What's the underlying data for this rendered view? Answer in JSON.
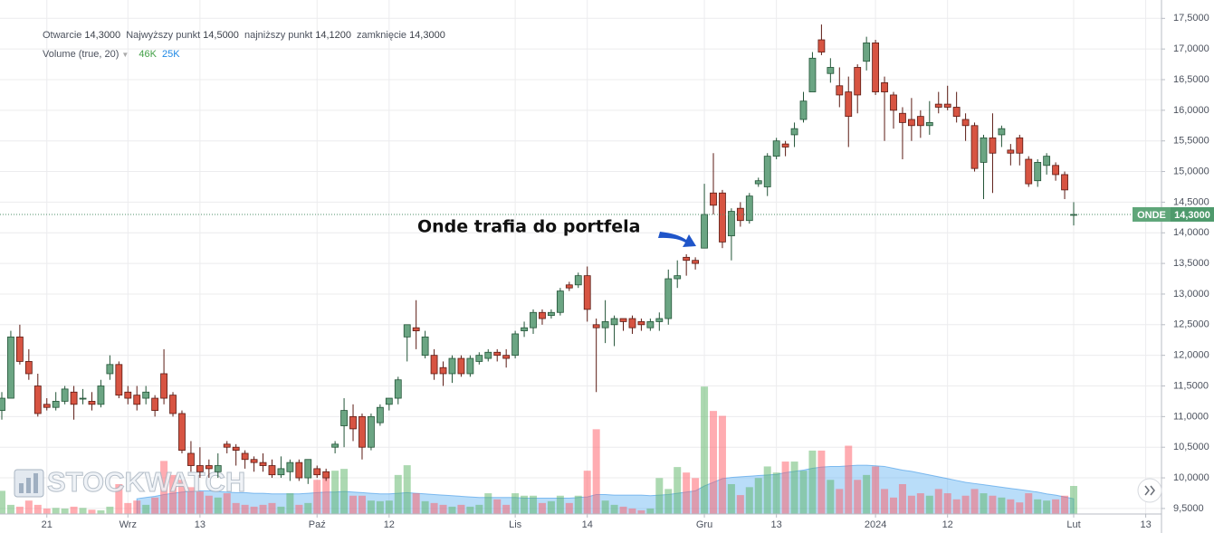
{
  "chart_data": {
    "type": "candlestick",
    "ohlc_legend": [
      "Otwarcie",
      "14,3000",
      "Najwyższy punkt",
      "14,5000",
      "najniższy punkt",
      "14,1200",
      "zamknięcie",
      "14,3000"
    ],
    "volume_legend": {
      "name": "Volume (true, 20)",
      "value": "46K",
      "ma": "25K"
    },
    "annotation": "Onde trafia do portfela",
    "watermark": "STOCKWATCH",
    "last_price": {
      "name": "ONDE",
      "value": 14.3,
      "label": "14,3000"
    },
    "up_color": "#6ba583",
    "down_color": "#d75442",
    "volume_up_color": "rgba(90,180,100,0.5)",
    "volume_down_color": "rgba(255,90,100,0.5)",
    "volume_ma_color": "rgba(80,170,240,0.4)",
    "grid": true,
    "xlim": [
      -0.2,
      128.75
    ],
    "xticks": [
      {
        "value": 5,
        "label": "21"
      },
      {
        "value": 14,
        "label": "Wrz"
      },
      {
        "value": 22,
        "label": "13"
      },
      {
        "value": 35,
        "label": "Paź"
      },
      {
        "value": 43,
        "label": "12"
      },
      {
        "value": 57,
        "label": "Lis"
      },
      {
        "value": 65,
        "label": "14"
      },
      {
        "value": 78,
        "label": "Gru"
      },
      {
        "value": 86,
        "label": "13"
      },
      {
        "value": 97,
        "label": "2024"
      },
      {
        "value": 105,
        "label": "12"
      },
      {
        "value": 119,
        "label": "Lut"
      },
      {
        "value": 127,
        "label": "13"
      }
    ],
    "ylim": [
      9.41,
      17.8
    ],
    "yticks": [
      {
        "value": 9.5,
        "label": "9,5000"
      },
      {
        "value": 10,
        "label": "10,0000"
      },
      {
        "value": 10.5,
        "label": "10,5000"
      },
      {
        "value": 11,
        "label": "11,0000"
      },
      {
        "value": 11.5,
        "label": "11,5000"
      },
      {
        "value": 12,
        "label": "12,0000"
      },
      {
        "value": 12.5,
        "label": "12,5000"
      },
      {
        "value": 13,
        "label": "13,0000"
      },
      {
        "value": 13.5,
        "label": "13,5000"
      },
      {
        "value": 14,
        "label": "14,0000"
      },
      {
        "value": 14.5,
        "label": "14,5000"
      },
      {
        "value": 15,
        "label": "15,0000"
      },
      {
        "value": 15.5,
        "label": "15,5000"
      },
      {
        "value": 16,
        "label": "16,0000"
      },
      {
        "value": 16.5,
        "label": "16,5000"
      },
      {
        "value": 17,
        "label": "17,0000"
      },
      {
        "value": 17.5,
        "label": "17,5000"
      }
    ],
    "y2lim": [
      0,
      843
    ],
    "open": [
      11.1,
      11.3,
      12.3,
      11.9,
      11.5,
      11.2,
      11.15,
      11.25,
      11.4,
      11.3,
      11.25,
      11.2,
      11.7,
      11.85,
      11.4,
      11.35,
      11.3,
      11.3,
      11.7,
      11.35,
      11.05,
      10.4,
      10.2,
      10.2,
      10.1,
      10.55,
      10.5,
      10.4,
      10.3,
      10.25,
      10.2,
      10.05,
      10.1,
      10.25,
      10.0,
      10.15,
      10.1,
      10.5,
      10.85,
      11.0,
      11.0,
      10.5,
      10.9,
      11.2,
      11.3,
      12.3,
      12.45,
      12.0,
      12.0,
      11.8,
      11.7,
      11.95,
      11.7,
      11.9,
      11.95,
      12.05,
      12.0,
      12.0,
      12.4,
      12.45,
      12.7,
      12.65,
      12.7,
      13.15,
      13.15,
      13.3,
      12.5,
      12.45,
      12.5,
      12.6,
      12.6,
      12.55,
      12.45,
      12.55,
      12.6,
      13.25,
      13.6,
      13.55,
      13.75,
      14.65,
      14.65,
      13.95,
      14.4,
      14.2,
      14.8,
      14.75,
      15.25,
      15.45,
      15.6,
      15.85,
      16.3,
      17.15,
      16.6,
      16.4,
      16.3,
      16.7,
      16.8,
      17.1,
      16.45,
      16.25,
      15.95,
      15.85,
      15.9,
      15.75,
      16.1,
      16.1,
      16.05,
      15.85,
      15.75,
      15.15,
      15.55,
      15.6,
      15.35,
      15.55,
      15.2,
      14.85,
      15.1,
      15.1,
      14.95,
      14.3
    ],
    "high": [
      11.4,
      12.4,
      12.5,
      12.1,
      11.7,
      11.3,
      11.4,
      11.5,
      11.5,
      11.45,
      11.4,
      11.6,
      12.0,
      11.9,
      11.5,
      11.5,
      11.5,
      11.35,
      12.1,
      11.4,
      11.1,
      10.6,
      10.5,
      10.3,
      10.4,
      10.6,
      10.55,
      10.45,
      10.35,
      10.4,
      10.3,
      10.35,
      10.3,
      10.3,
      10.3,
      10.2,
      10.15,
      10.6,
      11.3,
      11.2,
      11.05,
      11.05,
      11.2,
      11.3,
      11.65,
      12.5,
      12.9,
      12.4,
      12.1,
      11.9,
      12.0,
      12.0,
      12.0,
      12.05,
      12.1,
      12.1,
      12.1,
      12.4,
      12.55,
      12.75,
      12.75,
      12.75,
      13.1,
      13.2,
      13.35,
      13.45,
      12.6,
      12.9,
      12.65,
      12.6,
      12.65,
      12.6,
      12.6,
      12.7,
      13.4,
      13.55,
      13.65,
      13.6,
      14.8,
      15.3,
      14.7,
      14.4,
      14.5,
      14.65,
      14.9,
      15.3,
      15.55,
      15.5,
      15.8,
      16.3,
      16.95,
      17.4,
      16.85,
      16.7,
      16.55,
      16.75,
      17.2,
      17.15,
      16.55,
      16.3,
      16.05,
      16.2,
      16.0,
      16.15,
      16.3,
      16.4,
      16.3,
      15.95,
      15.8,
      15.6,
      15.95,
      15.75,
      15.45,
      15.6,
      15.25,
      15.2,
      15.3,
      15.15,
      15.0,
      14.5
    ],
    "low": [
      10.95,
      11.3,
      11.85,
      11.6,
      11.0,
      11.1,
      11.1,
      11.2,
      10.95,
      11.2,
      11.1,
      11.15,
      11.6,
      11.3,
      11.2,
      11.1,
      11.2,
      11.0,
      11.2,
      11.0,
      10.4,
      10.1,
      10.0,
      10.0,
      10.0,
      10.4,
      10.2,
      10.15,
      10.1,
      10.1,
      10.0,
      10.0,
      9.95,
      9.95,
      9.9,
      10.0,
      9.95,
      10.4,
      10.5,
      10.6,
      10.3,
      10.45,
      10.85,
      11.1,
      11.2,
      11.9,
      12.1,
      11.95,
      11.6,
      11.5,
      11.55,
      11.65,
      11.65,
      11.85,
      11.9,
      11.9,
      11.8,
      11.95,
      12.3,
      12.35,
      12.5,
      12.6,
      12.65,
      13.05,
      13.1,
      12.55,
      11.4,
      12.2,
      12.15,
      12.4,
      12.35,
      12.4,
      12.4,
      12.4,
      12.5,
      13.1,
      13.3,
      13.4,
      13.75,
      14.3,
      13.75,
      13.55,
      14.1,
      14.15,
      14.75,
      14.6,
      15.2,
      15.25,
      15.4,
      15.8,
      16.3,
      16.9,
      16.45,
      16.05,
      15.4,
      15.95,
      16.65,
      16.25,
      15.5,
      15.7,
      15.2,
      15.5,
      15.55,
      15.6,
      15.95,
      16.0,
      15.8,
      15.5,
      15.0,
      14.55,
      14.65,
      15.4,
      15.1,
      15.1,
      14.75,
      14.75,
      14.95,
      14.85,
      14.55,
      14.12
    ],
    "close": [
      11.3,
      12.3,
      11.9,
      11.7,
      11.05,
      11.15,
      11.25,
      11.45,
      11.2,
      11.3,
      11.2,
      11.5,
      11.85,
      11.35,
      11.3,
      11.2,
      11.4,
      11.1,
      11.3,
      11.05,
      10.45,
      10.2,
      10.1,
      10.15,
      10.2,
      10.5,
      10.45,
      10.3,
      10.25,
      10.2,
      10.05,
      10.15,
      10.25,
      10.0,
      10.3,
      10.05,
      10.0,
      10.55,
      11.1,
      10.8,
      10.5,
      11.0,
      11.15,
      11.3,
      11.6,
      12.5,
      12.4,
      12.3,
      11.7,
      11.7,
      11.95,
      11.7,
      11.95,
      12.0,
      12.05,
      12.0,
      11.95,
      12.35,
      12.45,
      12.7,
      12.6,
      12.7,
      13.05,
      13.1,
      13.3,
      12.75,
      12.45,
      12.55,
      12.6,
      12.55,
      12.45,
      12.5,
      12.55,
      12.6,
      13.25,
      13.3,
      13.55,
      13.5,
      14.3,
      14.45,
      13.85,
      14.35,
      14.2,
      14.6,
      14.85,
      15.25,
      15.5,
      15.4,
      15.7,
      16.15,
      16.85,
      16.95,
      16.7,
      16.25,
      15.9,
      16.25,
      17.1,
      16.3,
      16.3,
      16.0,
      15.8,
      15.75,
      15.75,
      15.8,
      16.05,
      16.05,
      15.9,
      15.75,
      15.05,
      15.55,
      15.3,
      15.7,
      15.3,
      15.3,
      14.8,
      15.15,
      15.25,
      14.95,
      14.7,
      14.3
    ],
    "volume": [
      38,
      15,
      12,
      22,
      15,
      9,
      10,
      9,
      12,
      10,
      7,
      6,
      12,
      49,
      18,
      22,
      15,
      27,
      87,
      64,
      56,
      44,
      37,
      30,
      27,
      34,
      18,
      15,
      12,
      15,
      18,
      12,
      34,
      15,
      18,
      56,
      59,
      71,
      74,
      30,
      30,
      22,
      21,
      22,
      64,
      80,
      34,
      21,
      18,
      15,
      12,
      15,
      12,
      15,
      34,
      24,
      15,
      34,
      30,
      30,
      18,
      21,
      30,
      18,
      30,
      71,
      139,
      22,
      15,
      12,
      9,
      6,
      9,
      59,
      41,
      77,
      68,
      59,
      209,
      169,
      161,
      49,
      31,
      44,
      59,
      78,
      68,
      86,
      86,
      71,
      104,
      104,
      56,
      41,
      112,
      56,
      64,
      78,
      41,
      27,
      49,
      30,
      34,
      30,
      41,
      34,
      24,
      30,
      41,
      34,
      30,
      27,
      24,
      19,
      34,
      24,
      22,
      24,
      30,
      46
    ],
    "volume_ma": [
      null,
      null,
      null,
      null,
      null,
      null,
      null,
      null,
      null,
      null,
      null,
      null,
      null,
      null,
      null,
      25,
      27,
      29,
      32,
      34,
      36,
      37,
      38,
      38,
      37,
      36,
      35,
      35,
      34,
      34,
      33,
      33,
      33,
      33,
      34,
      35,
      36,
      36,
      37,
      36,
      35,
      34,
      33,
      33,
      34,
      35,
      34,
      33,
      32,
      31,
      30,
      29,
      28,
      27,
      27,
      27,
      27,
      27,
      26,
      26,
      26,
      26,
      26,
      26,
      27,
      28,
      32,
      32,
      31,
      31,
      31,
      31,
      30,
      31,
      32,
      34,
      36,
      38,
      46,
      52,
      58,
      60,
      61,
      62,
      63,
      64,
      65,
      68,
      70,
      72,
      75,
      77,
      78,
      78,
      79,
      80,
      80,
      79,
      78,
      75,
      72,
      70,
      67,
      64,
      61,
      58,
      55,
      52,
      50,
      48,
      46,
      44,
      42,
      40,
      38,
      36,
      33,
      31,
      28,
      25
    ]
  }
}
